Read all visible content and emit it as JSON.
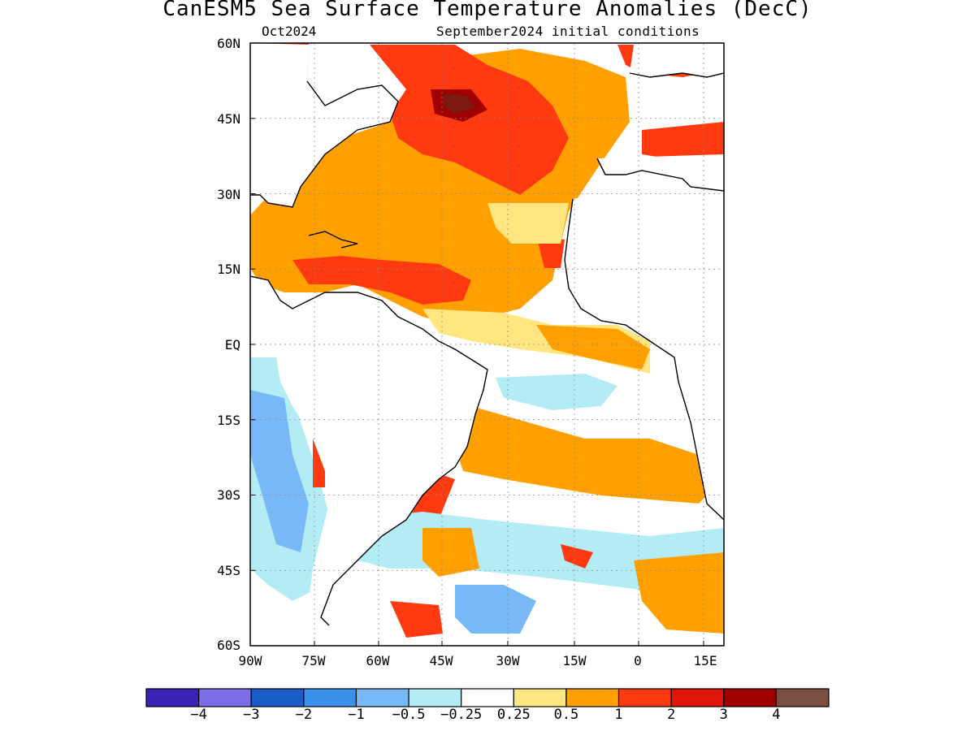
{
  "title": "CanESM5 Sea Surface Temperature Anomalies (DecC)",
  "subtitle_left": "Oct2024",
  "subtitle_right": "September2024 initial conditions",
  "lat_ticks": [
    "60N",
    "45N",
    "30N",
    "15N",
    "EQ",
    "15S",
    "30S",
    "45S",
    "60S"
  ],
  "lon_ticks": [
    "90W",
    "75W",
    "60W",
    "45W",
    "30W",
    "15W",
    "0",
    "15E"
  ],
  "colorbar": {
    "colors": [
      "#3b22b4",
      "#7b6ee8",
      "#1a5cc8",
      "#3a90ea",
      "#78b8f6",
      "#b4ecf6",
      "#ffffff",
      "#ffe680",
      "#ffa000",
      "#ff3a10",
      "#e01408",
      "#a00000",
      "#7a5040"
    ],
    "labels": [
      "−4",
      "−3",
      "−2",
      "−1",
      "−0.5",
      "−0.25",
      "0.25",
      "0.5",
      "1",
      "2",
      "3",
      "4"
    ]
  }
}
